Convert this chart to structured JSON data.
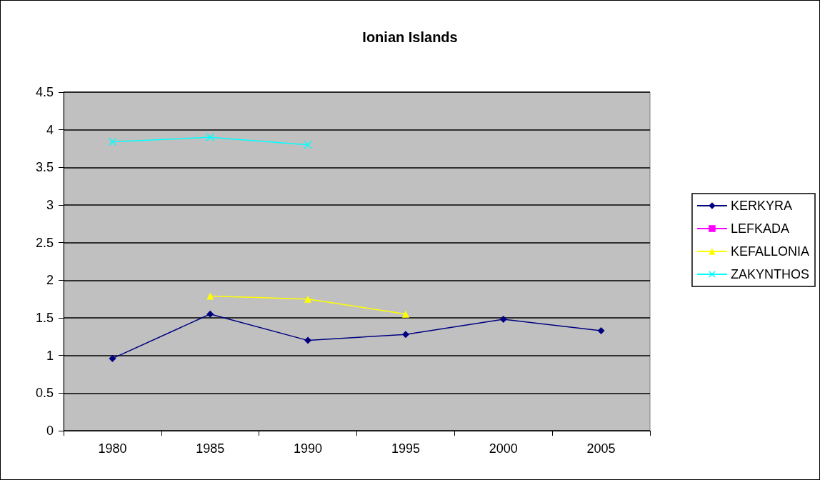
{
  "chart_data": {
    "type": "line",
    "title": "Ionian Islands",
    "categories": [
      "1980",
      "1985",
      "1990",
      "1995",
      "2000",
      "2005"
    ],
    "series": [
      {
        "name": "KERKYRA",
        "color": "#000080",
        "marker": "diamond",
        "values": [
          0.96,
          1.55,
          1.2,
          1.28,
          1.48,
          1.33
        ]
      },
      {
        "name": "LEFKADA",
        "color": "#ff00ff",
        "marker": "square",
        "values": [
          null,
          null,
          null,
          null,
          null,
          null
        ]
      },
      {
        "name": "KEFALLONIA",
        "color": "#ffff00",
        "marker": "triangle",
        "values": [
          null,
          1.79,
          1.75,
          1.55,
          null,
          null
        ]
      },
      {
        "name": "ZAKYNTHOS",
        "color": "#00ffff",
        "marker": "cross",
        "values": [
          3.84,
          3.9,
          3.8,
          null,
          null,
          null
        ]
      }
    ],
    "ylim": [
      0,
      4.5
    ],
    "yticks": [
      0,
      0.5,
      1,
      1.5,
      2,
      2.5,
      3,
      3.5,
      4,
      4.5
    ],
    "grid": "y",
    "legend": "right"
  }
}
